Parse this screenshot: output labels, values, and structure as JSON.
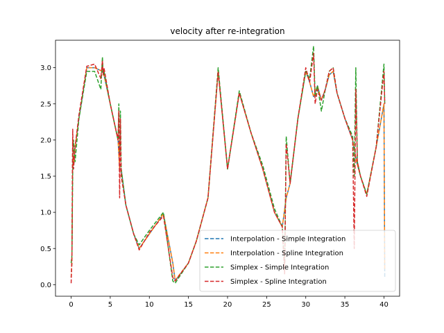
{
  "chart_data": {
    "type": "line",
    "title": "velocity after re-integration",
    "xlabel": "",
    "ylabel": "",
    "xlim": [
      -2.0,
      42.0
    ],
    "ylim": [
      -0.16,
      3.38
    ],
    "xticks": [
      0,
      5,
      10,
      15,
      20,
      25,
      30,
      35,
      40
    ],
    "yticks": [
      0.0,
      0.5,
      1.0,
      1.5,
      2.0,
      2.5,
      3.0
    ],
    "xtick_labels": [
      "0",
      "5",
      "10",
      "15",
      "20",
      "25",
      "30",
      "35",
      "40"
    ],
    "ytick_labels": [
      "0.0",
      "0.5",
      "1.0",
      "1.5",
      "2.0",
      "2.5",
      "3.0"
    ],
    "grid": false,
    "legend_position": "lower-right",
    "line_style": "dashed",
    "series": [
      {
        "name": "Interpolation - Simple Integration",
        "color": "#1f77b4",
        "x": [
          0,
          0.1,
          0.2,
          0.3,
          0.5,
          1.0,
          2.0,
          3.0,
          4.0,
          4.2,
          5.0,
          6.0,
          6.2,
          6.4,
          7.0,
          8.0,
          8.7,
          10.0,
          11.8,
          13.0,
          13.3,
          15.0,
          16.0,
          17.5,
          18.8,
          20.0,
          21.5,
          23.0,
          24.5,
          26.0,
          27.0,
          27.5,
          28.0,
          29.0,
          30.0,
          30.5,
          31.0,
          31.5,
          32.0,
          32.5,
          33.0,
          33.5,
          34.0,
          35.0,
          36.0,
          36.5,
          37.0,
          37.8,
          39.0,
          40.0,
          40.1
        ],
        "values": [
          0.1,
          0.3,
          2.0,
          1.6,
          1.9,
          2.3,
          3.0,
          3.0,
          2.95,
          2.9,
          2.5,
          2.0,
          1.6,
          1.6,
          1.1,
          0.7,
          0.5,
          0.7,
          0.98,
          0.3,
          0.05,
          0.3,
          0.6,
          1.2,
          2.95,
          1.6,
          2.65,
          2.1,
          1.6,
          1.0,
          0.8,
          1.2,
          1.4,
          2.3,
          2.95,
          2.8,
          2.6,
          2.75,
          2.55,
          2.7,
          2.9,
          2.95,
          2.65,
          2.3,
          2.0,
          1.7,
          1.5,
          1.25,
          1.9,
          2.5,
          0.1
        ]
      },
      {
        "name": "Interpolation - Spline Integration",
        "color": "#ff7f0e",
        "x": [
          0,
          0.1,
          0.2,
          0.3,
          0.5,
          1.0,
          2.0,
          3.0,
          4.0,
          4.2,
          5.0,
          6.0,
          6.2,
          6.4,
          7.0,
          8.0,
          8.7,
          10.0,
          11.8,
          13.0,
          13.3,
          15.0,
          16.0,
          17.5,
          18.8,
          20.0,
          21.5,
          23.0,
          24.5,
          26.0,
          27.0,
          27.5,
          28.0,
          29.0,
          30.0,
          30.5,
          31.0,
          31.5,
          32.0,
          32.5,
          33.0,
          33.5,
          34.0,
          35.0,
          36.0,
          36.5,
          37.0,
          37.8,
          39.0,
          40.0,
          40.1
        ],
        "values": [
          0.1,
          0.3,
          2.0,
          1.65,
          1.9,
          2.3,
          3.0,
          3.0,
          2.95,
          2.9,
          2.5,
          2.0,
          1.6,
          1.6,
          1.1,
          0.7,
          0.5,
          0.7,
          0.98,
          0.3,
          0.06,
          0.3,
          0.6,
          1.2,
          2.95,
          1.6,
          2.65,
          2.1,
          1.6,
          1.0,
          0.8,
          1.2,
          1.4,
          2.3,
          2.95,
          2.8,
          2.6,
          2.75,
          2.55,
          2.7,
          2.9,
          2.95,
          2.65,
          2.3,
          2.0,
          1.7,
          1.5,
          1.25,
          1.9,
          2.5,
          0.2
        ]
      },
      {
        "name": "Simplex - Simple Integration",
        "color": "#2ca02c",
        "x": [
          0,
          0.1,
          0.2,
          0.3,
          0.5,
          1.0,
          2.0,
          3.0,
          3.8,
          4.0,
          4.1,
          4.2,
          5.0,
          6.0,
          6.1,
          6.2,
          6.3,
          6.4,
          7.0,
          8.0,
          8.7,
          10.0,
          11.8,
          13.0,
          13.3,
          15.0,
          16.0,
          17.5,
          18.8,
          20.0,
          21.5,
          23.0,
          24.5,
          26.0,
          27.0,
          27.3,
          27.5,
          28.0,
          29.0,
          30.0,
          30.5,
          31.0,
          31.2,
          31.5,
          32.0,
          32.5,
          33.0,
          33.5,
          34.0,
          35.0,
          36.0,
          36.2,
          36.4,
          36.6,
          37.0,
          37.8,
          39.0,
          40.0,
          40.1
        ],
        "values": [
          0.3,
          0.4,
          1.55,
          2.0,
          1.7,
          2.3,
          2.95,
          2.95,
          2.7,
          3.15,
          2.9,
          2.95,
          2.5,
          2.0,
          2.5,
          1.8,
          2.4,
          1.6,
          1.1,
          0.7,
          0.55,
          0.75,
          1.0,
          0.05,
          0.02,
          0.3,
          0.6,
          1.2,
          3.0,
          1.6,
          2.68,
          2.1,
          1.65,
          1.05,
          0.8,
          0.2,
          2.05,
          1.4,
          2.3,
          2.95,
          2.85,
          3.3,
          2.6,
          2.75,
          2.4,
          2.7,
          2.95,
          3.0,
          2.65,
          2.3,
          2.05,
          1.5,
          3.0,
          1.7,
          1.5,
          1.25,
          1.9,
          3.05,
          2.5
        ]
      },
      {
        "name": "Simplex - Spline Integration",
        "color": "#d62728",
        "x": [
          0,
          0.1,
          0.2,
          0.3,
          0.5,
          1.0,
          2.0,
          3.0,
          3.8,
          4.0,
          4.1,
          4.2,
          5.0,
          6.0,
          6.1,
          6.2,
          6.3,
          6.4,
          7.0,
          8.0,
          8.7,
          10.0,
          11.8,
          13.0,
          13.3,
          15.0,
          16.0,
          17.5,
          18.8,
          20.0,
          21.5,
          23.0,
          24.5,
          26.0,
          27.0,
          27.3,
          27.5,
          28.0,
          29.0,
          30.0,
          30.5,
          31.0,
          31.2,
          31.5,
          32.0,
          32.5,
          33.0,
          33.5,
          34.0,
          35.0,
          36.0,
          36.2,
          36.4,
          36.6,
          37.0,
          37.8,
          39.0,
          40.0,
          40.1
        ],
        "values": [
          0.02,
          0.4,
          2.15,
          1.6,
          1.9,
          2.35,
          3.02,
          3.05,
          2.85,
          3.1,
          2.9,
          3.0,
          2.5,
          2.0,
          2.4,
          1.2,
          2.3,
          1.5,
          1.1,
          0.7,
          0.48,
          0.72,
          0.95,
          0.1,
          0.05,
          0.3,
          0.6,
          1.2,
          2.95,
          1.6,
          2.65,
          2.1,
          1.6,
          1.0,
          0.8,
          0.15,
          1.95,
          1.4,
          2.3,
          3.0,
          2.8,
          3.2,
          2.5,
          2.7,
          2.55,
          2.7,
          2.95,
          3.0,
          2.65,
          2.3,
          2.0,
          0.5,
          2.7,
          1.7,
          1.5,
          1.22,
          1.9,
          2.95,
          2.5
        ]
      }
    ]
  }
}
